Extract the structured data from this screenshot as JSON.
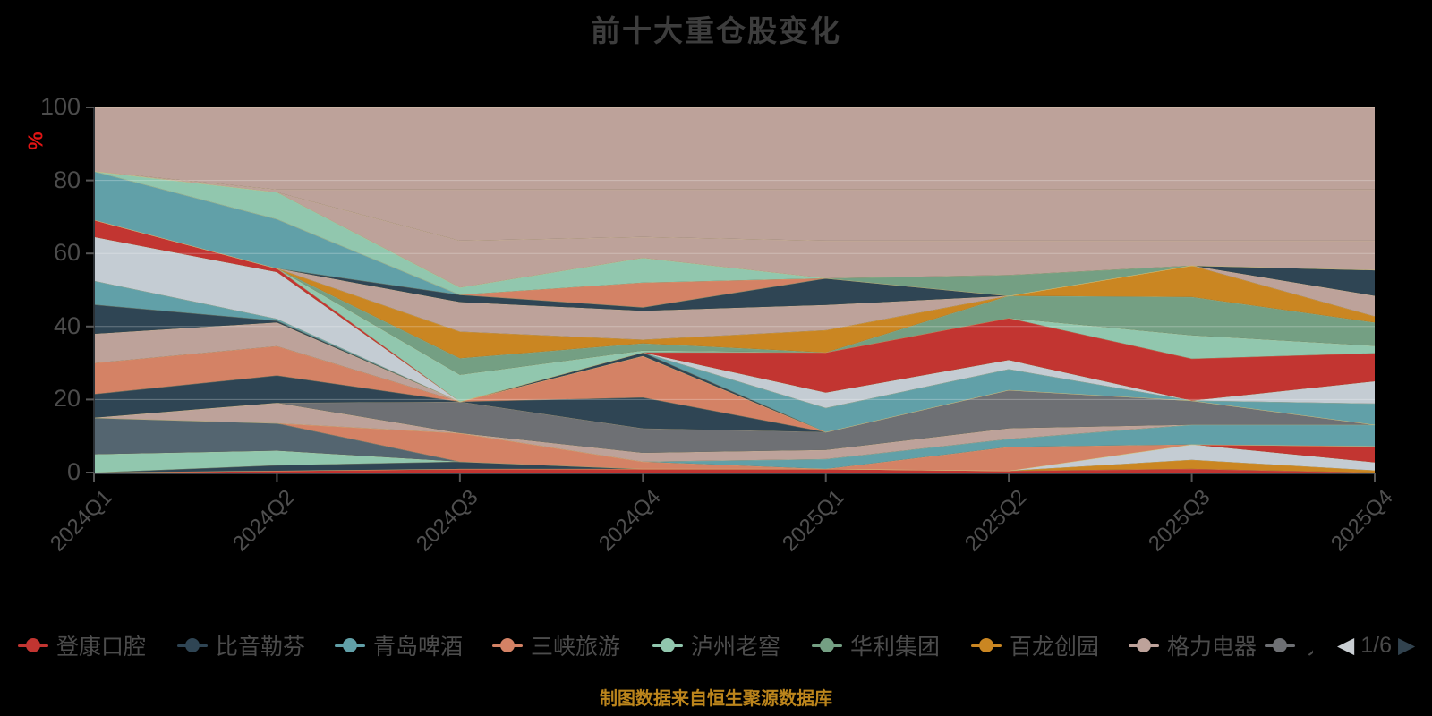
{
  "title": "前十大重仓股变化",
  "footer": "制图数据来自恒生聚源数据库",
  "y_axis": {
    "name": "%",
    "labels": [
      "0",
      "20",
      "40",
      "60",
      "80",
      "100"
    ]
  },
  "legend": {
    "items": [
      {
        "label": "登康口腔",
        "color": "#c23531"
      },
      {
        "label": "比音勒芬",
        "color": "#2f4554"
      },
      {
        "label": "青岛啤酒",
        "color": "#61a0a8"
      },
      {
        "label": "三峡旅游",
        "color": "#d48265"
      },
      {
        "label": "泸州老窖",
        "color": "#91c7ae"
      },
      {
        "label": "华利集团",
        "color": "#749f83"
      },
      {
        "label": "百龙创园",
        "color": "#ca8622"
      },
      {
        "label": "格力电器",
        "color": "#bda29a"
      },
      {
        "label": "丿",
        "color": "#6e7074"
      }
    ],
    "pager": {
      "current": "1/6",
      "prev_icon": "◀",
      "next_icon": "▶",
      "prev_color": "#c9ced2",
      "next_color": "#32434f"
    }
  },
  "chart_data": {
    "type": "area",
    "stacked": true,
    "title": "前十大重仓股变化",
    "x": [
      "2024Q1",
      "2024Q2",
      "2024Q3",
      "2024Q4",
      "2025Q1",
      "2025Q2",
      "2025Q3",
      "2025Q4"
    ],
    "ylabel": "%",
    "ylim": [
      0,
      100
    ],
    "y_ticks": [
      0,
      20,
      40,
      60,
      80,
      100
    ],
    "grid": true,
    "legend_position": "bottom",
    "legend_stocks": [
      "登康口腔",
      "比音勒芬",
      "青岛啤酒",
      "三峡旅游",
      "泸州老窖",
      "华利集团",
      "百龙创园",
      "格力电器"
    ],
    "bands": [
      {
        "name": "band-red-bottom",
        "color": "#c23531",
        "values": [
          0,
          0.5,
          1,
          1,
          1,
          0.5,
          1,
          0
        ]
      },
      {
        "name": "band-gold-bottom",
        "color": "#ca8622",
        "values": [
          0,
          0,
          0,
          0,
          0,
          0,
          2.5,
          0.6
        ]
      },
      {
        "name": "band-silver-bottom",
        "color": "#c4ccd3",
        "values": [
          0,
          0,
          0,
          0,
          0,
          0,
          4.2,
          2.2
        ]
      },
      {
        "name": "band-red-low",
        "color": "#c23531",
        "values": [
          0,
          0,
          0,
          0,
          0,
          0,
          0,
          4.4
        ]
      },
      {
        "name": "band-navy-bottom",
        "color": "#2f4554",
        "values": [
          0,
          1.5,
          2,
          0,
          0,
          0,
          0,
          0
        ]
      },
      {
        "name": "band-green-bottom",
        "color": "#91c7ae",
        "values": [
          5,
          4,
          0,
          0,
          0,
          0,
          0,
          0
        ]
      },
      {
        "name": "band-slate-bottom",
        "color": "#546570",
        "values": [
          10,
          7.5,
          0,
          0,
          0,
          0,
          0,
          0
        ]
      },
      {
        "name": "band-salmon-low",
        "color": "#d48265",
        "values": [
          0,
          0,
          7.8,
          2,
          0,
          6.5,
          0,
          0
        ]
      },
      {
        "name": "band-teal-low",
        "color": "#61a0a8",
        "values": [
          0,
          0,
          0,
          0,
          2.7,
          2.2,
          5.4,
          5.9
        ]
      },
      {
        "name": "band-rose-low",
        "color": "#bda29a",
        "values": [
          0,
          5.6,
          0,
          2.4,
          2.5,
          2.9,
          0,
          0
        ]
      },
      {
        "name": "band-gray-mid",
        "color": "#6e7074",
        "values": [
          0,
          0,
          8.6,
          6.7,
          4.9,
          10.5,
          6.6,
          0
        ]
      },
      {
        "name": "band-navy-mid1",
        "color": "#2f4554",
        "values": [
          6.5,
          7.5,
          0,
          8.5,
          0,
          0,
          0,
          0
        ]
      },
      {
        "name": "band-salmon-mid",
        "color": "#d48265",
        "values": [
          8.5,
          8,
          0,
          11.3,
          0,
          0,
          0,
          0
        ]
      },
      {
        "name": "band-rose-mid1",
        "color": "#bda29a",
        "values": [
          8,
          6.5,
          0,
          0,
          0,
          0,
          0,
          0
        ]
      },
      {
        "name": "band-navy-mid2",
        "color": "#2f4554",
        "values": [
          8,
          0.5,
          0,
          1,
          0,
          0,
          0,
          0
        ]
      },
      {
        "name": "band-teal-mid",
        "color": "#61a0a8",
        "values": [
          6.5,
          0.5,
          0,
          0,
          6.6,
          5.7,
          0,
          5.8
        ]
      },
      {
        "name": "band-silver-mid",
        "color": "#c4ccd3",
        "values": [
          12,
          12.8,
          0,
          0,
          4.2,
          2.5,
          0,
          6.1
        ]
      },
      {
        "name": "band-red-mid",
        "color": "#c23531",
        "values": [
          4.7,
          1,
          0,
          0,
          11,
          11.5,
          11.5,
          7.7
        ]
      },
      {
        "name": "band-green-mid",
        "color": "#91c7ae",
        "values": [
          0,
          0,
          7.4,
          0.5,
          0,
          0,
          6.4,
          2
        ]
      },
      {
        "name": "band-mgreen-mid",
        "color": "#749f83",
        "values": [
          0,
          0,
          4.5,
          2,
          0,
          6.1,
          10.5,
          6.4
        ]
      },
      {
        "name": "band-gold-mid",
        "color": "#ca8622",
        "values": [
          0,
          0,
          7.3,
          1,
          6.1,
          0,
          8.6,
          1.7
        ]
      },
      {
        "name": "band-rose-mid2",
        "color": "#bda29a",
        "values": [
          0,
          0,
          8.1,
          7.9,
          6.9,
          0,
          0,
          5.6
        ]
      },
      {
        "name": "band-navy-top",
        "color": "#2f4554",
        "values": [
          0,
          0,
          2,
          1,
          7.3,
          0,
          0,
          7.1
        ]
      },
      {
        "name": "band-teal-top",
        "color": "#61a0a8",
        "values": [
          13.3,
          13.5,
          0,
          0,
          0,
          0,
          0,
          0
        ]
      },
      {
        "name": "band-salmon-top",
        "color": "#d48265",
        "values": [
          0,
          0,
          0,
          6.7,
          0,
          0,
          0,
          0
        ]
      },
      {
        "name": "band-green-top",
        "color": "#91c7ae",
        "values": [
          0,
          7.4,
          2,
          6.8,
          0,
          0,
          0,
          0
        ]
      },
      {
        "name": "band-mgreen-top",
        "color": "#749f83",
        "values": [
          0,
          0,
          0,
          0,
          0,
          5.7,
          0,
          0
        ]
      },
      {
        "name": "band-rose-top-a",
        "color": "#bda29a",
        "values": [
          0,
          0,
          12.8,
          5.7,
          10.3,
          9.4,
          6.8,
          8
        ]
      },
      {
        "name": "band-rose-top-b",
        "color": "#bda29a",
        "values": [
          0,
          0.7,
          14,
          13,
          14,
          14,
          14,
          14
        ]
      },
      {
        "name": "band-rose-top-c",
        "color": "#bda29a",
        "values": [
          17.5,
          22.5,
          22.5,
          22.5,
          22.5,
          22.5,
          22.5,
          22.5
        ]
      }
    ]
  }
}
